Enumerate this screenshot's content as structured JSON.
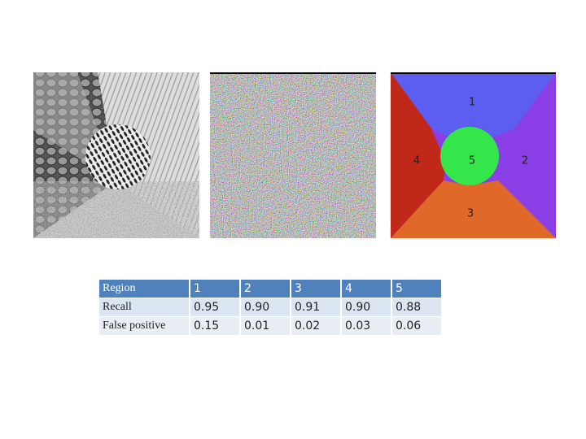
{
  "segment_labels": [
    "1",
    "2",
    "3",
    "4",
    "5"
  ],
  "table": {
    "rows": [
      [
        "Region",
        "1",
        "2",
        "3",
        "4",
        "5"
      ],
      [
        "Recall",
        "0.95",
        "0.90",
        "0.91",
        "0.90",
        "0.88"
      ],
      [
        "False positive",
        "0.15",
        "0.01",
        "0.02",
        "0.03",
        "0.06"
      ]
    ]
  }
}
